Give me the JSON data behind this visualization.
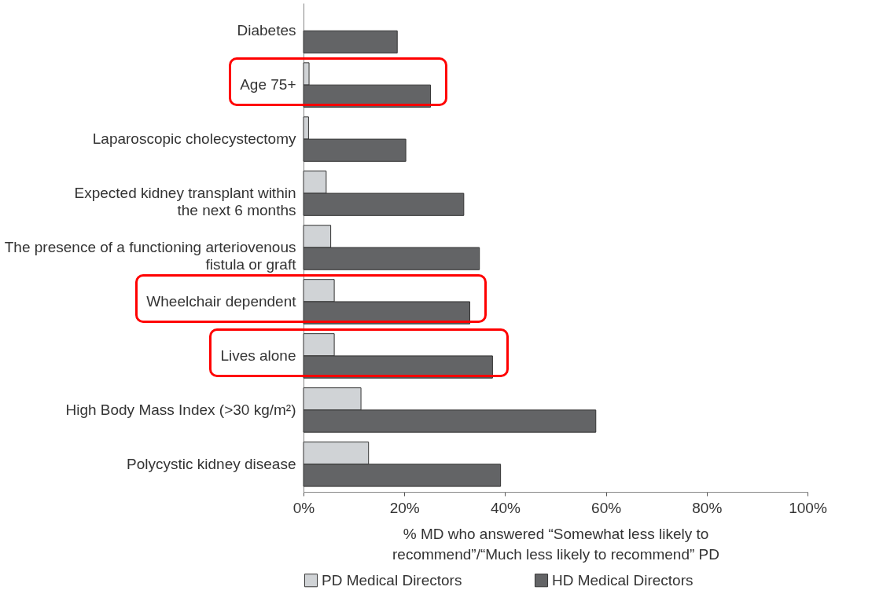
{
  "chart_data": {
    "type": "bar",
    "orientation": "horizontal",
    "categories": [
      "Diabetes",
      "Age 75+",
      "Laparoscopic cholecystectomy",
      "Expected kidney transplant within the next 6 months",
      "The presence of a functioning arteriovenous fistula or graft",
      "Wheelchair dependent",
      "Lives alone",
      "High Body Mass Index (>30 kg/m²)",
      "Polycystic kidney disease"
    ],
    "series": [
      {
        "name": "PD Medical Directors",
        "color": "#d0d3d6",
        "values": [
          null,
          1.1,
          1.0,
          4.5,
          5.4,
          6.1,
          6.1,
          11.4,
          12.9
        ]
      },
      {
        "name": "HD Medical Directors",
        "color": "#636466",
        "values": [
          18.6,
          25.2,
          20.3,
          31.8,
          34.9,
          33.0,
          37.5,
          58.0,
          39.1
        ]
      }
    ],
    "xlabel": "% MD who answered “Somewhat less likely to recommend”/“Much less likely to recommend” PD",
    "xlim": [
      0,
      100
    ],
    "xticks": [
      {
        "value": 0,
        "label": "0%"
      },
      {
        "value": 20,
        "label": "20%"
      },
      {
        "value": 40,
        "label": "40%"
      },
      {
        "value": 60,
        "label": "60%"
      },
      {
        "value": 80,
        "label": "80%"
      },
      {
        "value": 100,
        "label": "100%"
      }
    ],
    "grid": false,
    "legend": "bottom"
  }
}
